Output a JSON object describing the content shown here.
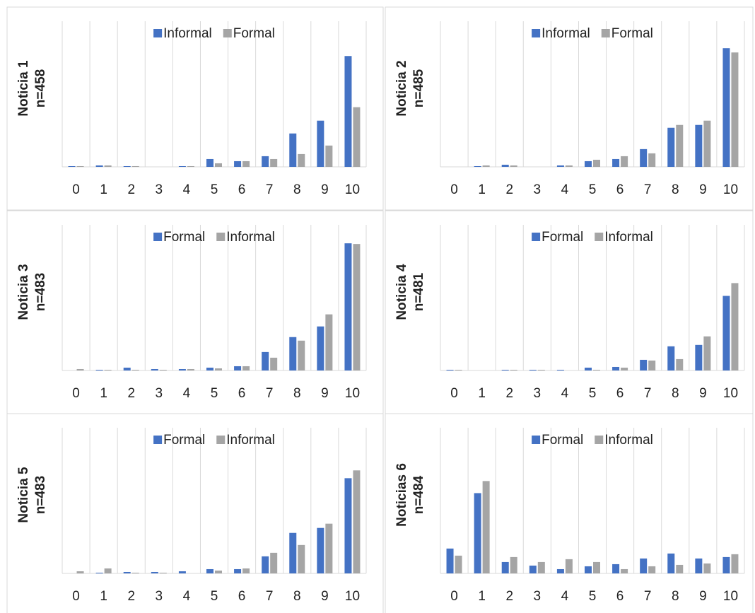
{
  "chart_data": [
    {
      "type": "bar",
      "y_label": [
        "Noticia 1",
        "n=458"
      ],
      "categories": [
        "0",
        "1",
        "2",
        "3",
        "4",
        "5",
        "6",
        "7",
        "8",
        "9",
        "10"
      ],
      "ylim": [
        0,
        205
      ],
      "series": [
        {
          "name": "Informal",
          "color": "#4472c4",
          "values": [
            1,
            2,
            1,
            0,
            1,
            11,
            8,
            15,
            47,
            65,
            156
          ]
        },
        {
          "name": "Formal",
          "color": "#a5a5a5",
          "values": [
            1,
            2,
            1,
            0,
            1,
            5,
            8,
            11,
            18,
            30,
            84
          ]
        }
      ]
    },
    {
      "type": "bar",
      "y_label": [
        "Noticia 2",
        "n=485"
      ],
      "categories": [
        "0",
        "1",
        "2",
        "3",
        "4",
        "5",
        "6",
        "7",
        "8",
        "9",
        "10"
      ],
      "ylim": [
        0,
        205
      ],
      "series": [
        {
          "name": "Informal",
          "color": "#4472c4",
          "values": [
            0,
            1,
            3,
            0,
            2,
            8,
            11,
            25,
            55,
            59,
            167
          ]
        },
        {
          "name": "Formal",
          "color": "#a5a5a5",
          "values": [
            0,
            2,
            2,
            0,
            2,
            10,
            15,
            19,
            59,
            65,
            161
          ]
        }
      ]
    },
    {
      "type": "bar",
      "y_label": [
        "Noticia 3",
        "n=483"
      ],
      "categories": [
        "0",
        "1",
        "2",
        "3",
        "4",
        "5",
        "6",
        "7",
        "8",
        "9",
        "10"
      ],
      "ylim": [
        0,
        205
      ],
      "series": [
        {
          "name": "Formal",
          "color": "#4472c4",
          "values": [
            0,
            1,
            4,
            2,
            2,
            4,
            6,
            26,
            47,
            62,
            179
          ]
        },
        {
          "name": "Informal",
          "color": "#a5a5a5",
          "values": [
            2,
            1,
            1,
            1,
            2,
            3,
            6,
            18,
            42,
            79,
            178
          ]
        }
      ]
    },
    {
      "type": "bar",
      "y_label": [
        "Noticia 4",
        "n=481"
      ],
      "categories": [
        "0",
        "1",
        "2",
        "3",
        "4",
        "5",
        "6",
        "7",
        "8",
        "9",
        "10"
      ],
      "ylim": [
        0,
        205
      ],
      "series": [
        {
          "name": "Formal",
          "color": "#4472c4",
          "values": [
            1,
            0,
            1,
            1,
            1,
            4,
            5,
            15,
            34,
            36,
            105
          ]
        },
        {
          "name": "Informal",
          "color": "#a5a5a5",
          "values": [
            1,
            0,
            1,
            1,
            0,
            1,
            4,
            14,
            16,
            48,
            123
          ]
        }
      ]
    },
    {
      "type": "bar",
      "y_label": [
        "Noticia 5",
        "n=483"
      ],
      "categories": [
        "0",
        "1",
        "2",
        "3",
        "4",
        "5",
        "6",
        "7",
        "8",
        "9",
        "10"
      ],
      "ylim": [
        0,
        205
      ],
      "series": [
        {
          "name": "Formal",
          "color": "#4472c4",
          "values": [
            0,
            1,
            2,
            2,
            3,
            6,
            6,
            24,
            57,
            64,
            134
          ]
        },
        {
          "name": "Informal",
          "color": "#a5a5a5",
          "values": [
            3,
            7,
            1,
            1,
            0,
            4,
            7,
            29,
            40,
            70,
            145
          ]
        }
      ]
    },
    {
      "type": "bar",
      "y_label": [
        "Noticias 6",
        "n=484"
      ],
      "categories": [
        "0",
        "1",
        "2",
        "3",
        "4",
        "5",
        "6",
        "7",
        "8",
        "9",
        "10"
      ],
      "ylim": [
        0,
        205
      ],
      "series": [
        {
          "name": "Formal",
          "color": "#4472c4",
          "values": [
            35,
            113,
            16,
            11,
            6,
            10,
            13,
            21,
            28,
            21,
            23
          ]
        },
        {
          "name": "Informal",
          "color": "#a5a5a5",
          "values": [
            25,
            130,
            23,
            16,
            20,
            16,
            6,
            10,
            12,
            14,
            27
          ]
        }
      ]
    }
  ]
}
